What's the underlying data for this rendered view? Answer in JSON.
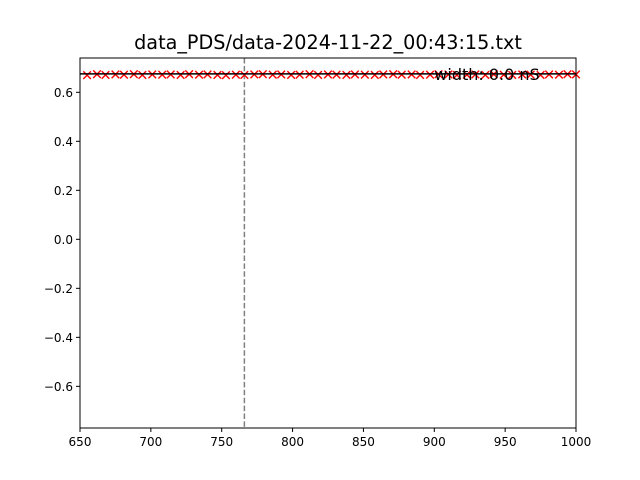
{
  "chart_data": {
    "type": "scatter",
    "title": "data_PDS/data-2024-11-22_00:43:15.txt",
    "xlabel": "",
    "ylabel": "",
    "xlim": [
      650,
      1000
    ],
    "ylim": [
      -0.77,
      0.74
    ],
    "grid": false,
    "x_ticks": [
      650,
      700,
      750,
      800,
      850,
      900,
      950,
      1000
    ],
    "x_tick_labels": [
      "650",
      "700",
      "750",
      "800",
      "850",
      "900",
      "950",
      "1000"
    ],
    "y_ticks": [
      0.6,
      0.4,
      0.2,
      0.0,
      -0.2,
      -0.4,
      -0.6
    ],
    "y_tick_labels": [
      "0.6",
      "0.4",
      "0.2",
      "0.0",
      "−0.2",
      "−0.4",
      "−0.6"
    ],
    "series": [
      {
        "marker": "x",
        "color": "#ff0000",
        "x": [
          655,
          662,
          668,
          675,
          681,
          688,
          694,
          701,
          708,
          714,
          721,
          727,
          734,
          740,
          747,
          753,
          760,
          766,
          773,
          779,
          786,
          792,
          799,
          805,
          812,
          818,
          825,
          831,
          838,
          844,
          851,
          858,
          864,
          871,
          877,
          884,
          890,
          897,
          903,
          910,
          916,
          923,
          929,
          936,
          942,
          949,
          955,
          962,
          968,
          975,
          981,
          988,
          994,
          1000
        ],
        "y": [
          0.67,
          0.674,
          0.671,
          0.673,
          0.672,
          0.674,
          0.671,
          0.673,
          0.672,
          0.673,
          0.671,
          0.674,
          0.672,
          0.673,
          0.671,
          0.67,
          0.672,
          0.671,
          0.673,
          0.674,
          0.672,
          0.673,
          0.671,
          0.672,
          0.674,
          0.671,
          0.673,
          0.672,
          0.671,
          0.673,
          0.672,
          0.671,
          0.673,
          0.674,
          0.672,
          0.673,
          0.671,
          0.672,
          0.674,
          0.673,
          0.671,
          0.672,
          0.673,
          0.671,
          0.674,
          0.672,
          0.671,
          0.673,
          0.672,
          0.671,
          0.673,
          0.672,
          0.674,
          0.673
        ]
      }
    ],
    "hline": {
      "y": 0.675,
      "color": "#000000"
    },
    "vline": {
      "x": 766,
      "color": "#808080",
      "style": "dashed"
    },
    "annotation": {
      "text": "width: 0.0 nS",
      "x": 900,
      "y": 0.675
    }
  }
}
